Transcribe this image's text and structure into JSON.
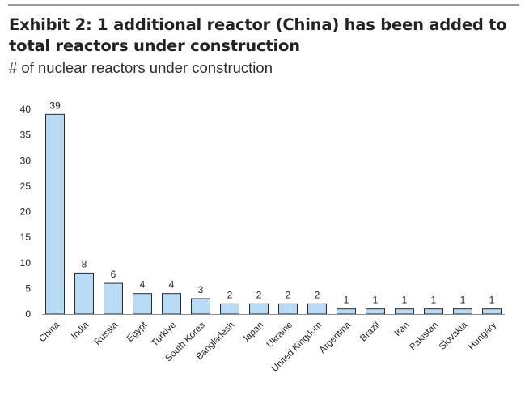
{
  "header": {
    "title": "Exhibit 2: 1 additional reactor (China) has been added to total reactors under construction",
    "subtitle": "# of nuclear reactors under construction"
  },
  "colors": {
    "bar_fill": "#b8dcf5",
    "bar_stroke": "#2a2a2a",
    "axis": "#8c8c8c",
    "rule": "#9a9a9a"
  },
  "chart_data": {
    "type": "bar",
    "title": "Exhibit 2: 1 additional reactor (China) has been added to total reactors under construction",
    "subtitle": "# of nuclear reactors under construction",
    "categories": [
      "China",
      "India",
      "Russia",
      "Egypt",
      "Turkiye",
      "South Korea",
      "Bangladesh",
      "Japan",
      "Ukraine",
      "United Kingdom",
      "Argentina",
      "Brazil",
      "Iran",
      "Pakistan",
      "Slovakia",
      "Hungary"
    ],
    "values": [
      39,
      8,
      6,
      4,
      4,
      3,
      2,
      2,
      2,
      2,
      1,
      1,
      1,
      1,
      1,
      1
    ],
    "data_labels": [
      "39",
      "8",
      "6",
      "4",
      "4",
      "3",
      "2",
      "2",
      "2",
      "2",
      "1",
      "1",
      "1",
      "1",
      "1",
      "1"
    ],
    "xlabel": "",
    "ylabel": "",
    "ylim": [
      0,
      40
    ],
    "yticks": [
      0,
      5,
      10,
      15,
      20,
      25,
      30,
      35,
      40
    ],
    "grid": false,
    "legend": "none"
  }
}
